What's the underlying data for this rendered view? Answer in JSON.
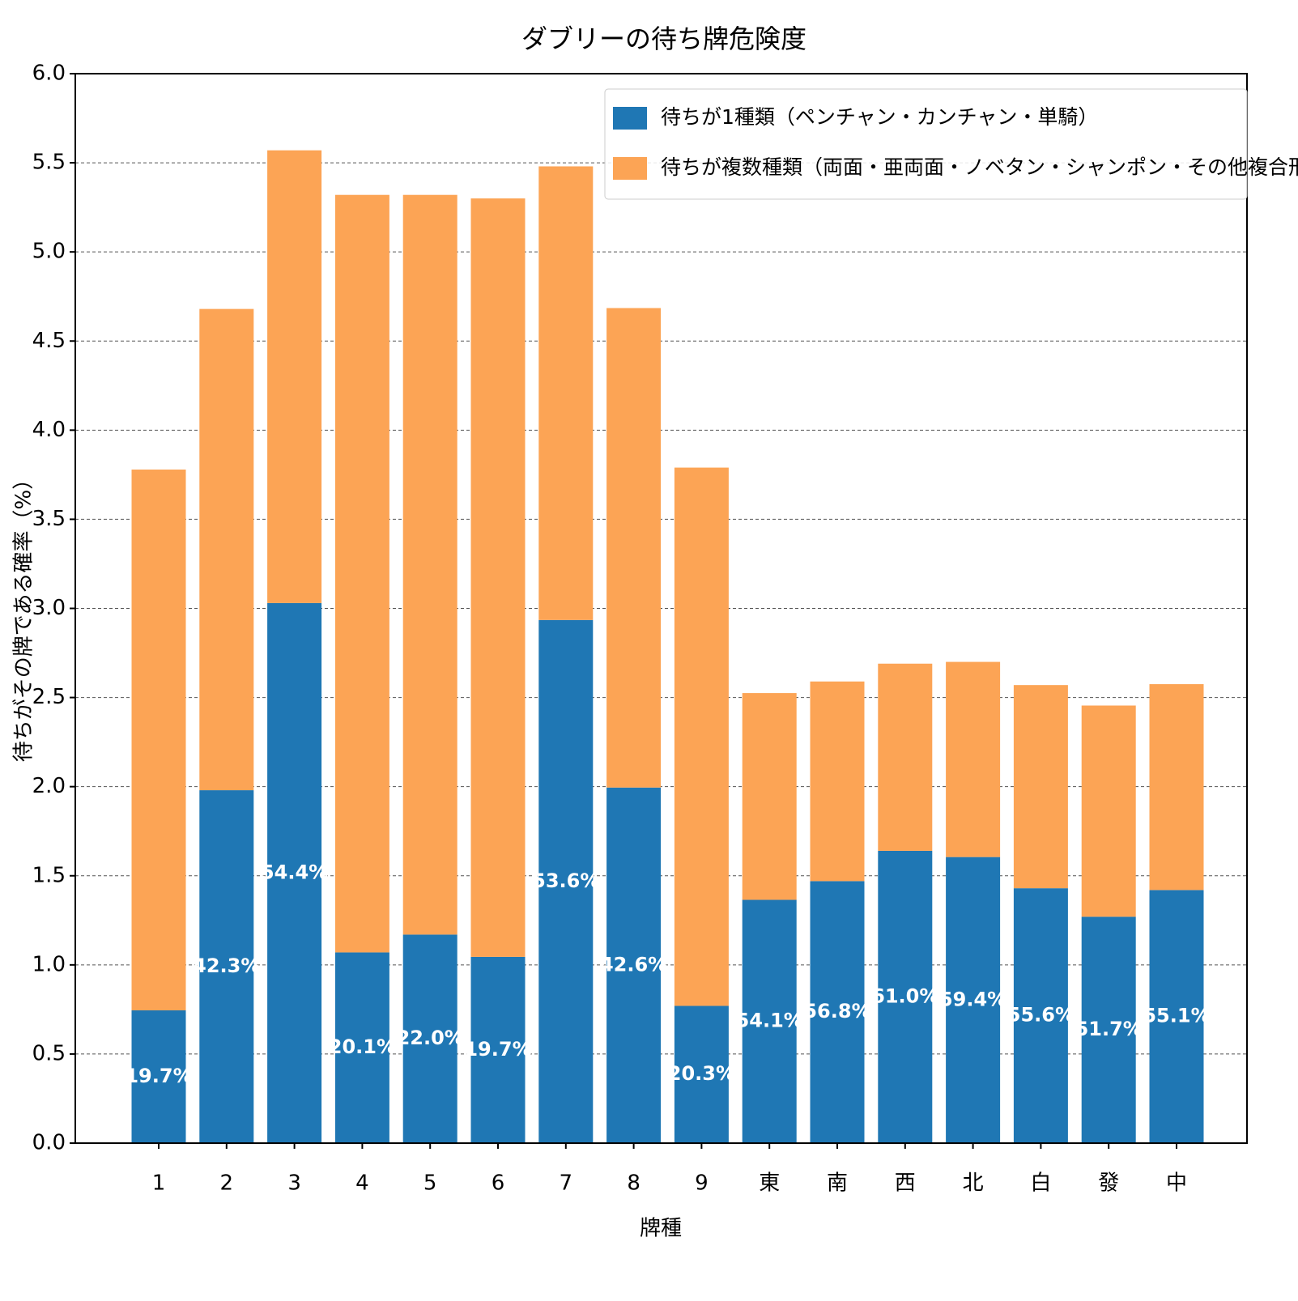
{
  "chart_data": {
    "type": "stacked_bar",
    "title": "ダブリーの待ち牌危険度",
    "x_label": "牌種",
    "y_label": "待ちがその牌である確率（%）",
    "categories": [
      "1",
      "2",
      "3",
      "4",
      "5",
      "6",
      "7",
      "8",
      "9",
      "東",
      "南",
      "西",
      "北",
      "白",
      "發",
      "中"
    ],
    "series": [
      {
        "name": "待ちが1種類（ペンチャン・カンチャン・単騎）",
        "color": "#1f77b4",
        "values": [
          0.745,
          1.98,
          3.03,
          1.07,
          1.17,
          1.045,
          2.935,
          1.995,
          0.77,
          1.365,
          1.47,
          1.64,
          1.605,
          1.43,
          1.27,
          1.42
        ]
      },
      {
        "name": "待ちが複数種類（両面・亜両面・ノベタン・シャンポン・その他複合形）",
        "color": "#fca455",
        "values": [
          3.034,
          2.7,
          2.54,
          4.25,
          4.15,
          4.255,
          2.545,
          2.69,
          3.02,
          1.16,
          1.12,
          1.05,
          1.095,
          1.14,
          1.185,
          1.155
        ]
      }
    ],
    "share_labels": [
      "19.7%",
      "42.3%",
      "54.4%",
      "20.1%",
      "22.0%",
      "19.7%",
      "53.6%",
      "42.6%",
      "20.3%",
      "54.1%",
      "56.8%",
      "61.0%",
      "59.4%",
      "55.6%",
      "51.7%",
      "55.1%"
    ],
    "ylim": [
      0,
      6
    ],
    "yticks": [
      {
        "value": 0,
        "label": "0.0"
      },
      0.5,
      {
        "value": 1,
        "label": "1.0"
      },
      1.5,
      {
        "value": 2,
        "label": "2.0"
      },
      2.5,
      {
        "value": 3,
        "label": "3.0"
      },
      3.5,
      {
        "value": 4,
        "label": "4.0"
      },
      4.5,
      {
        "value": 5,
        "label": "5.0"
      },
      5.5,
      {
        "value": 6,
        "label": "6.0"
      }
    ],
    "grid": true,
    "legend": "upper right"
  }
}
